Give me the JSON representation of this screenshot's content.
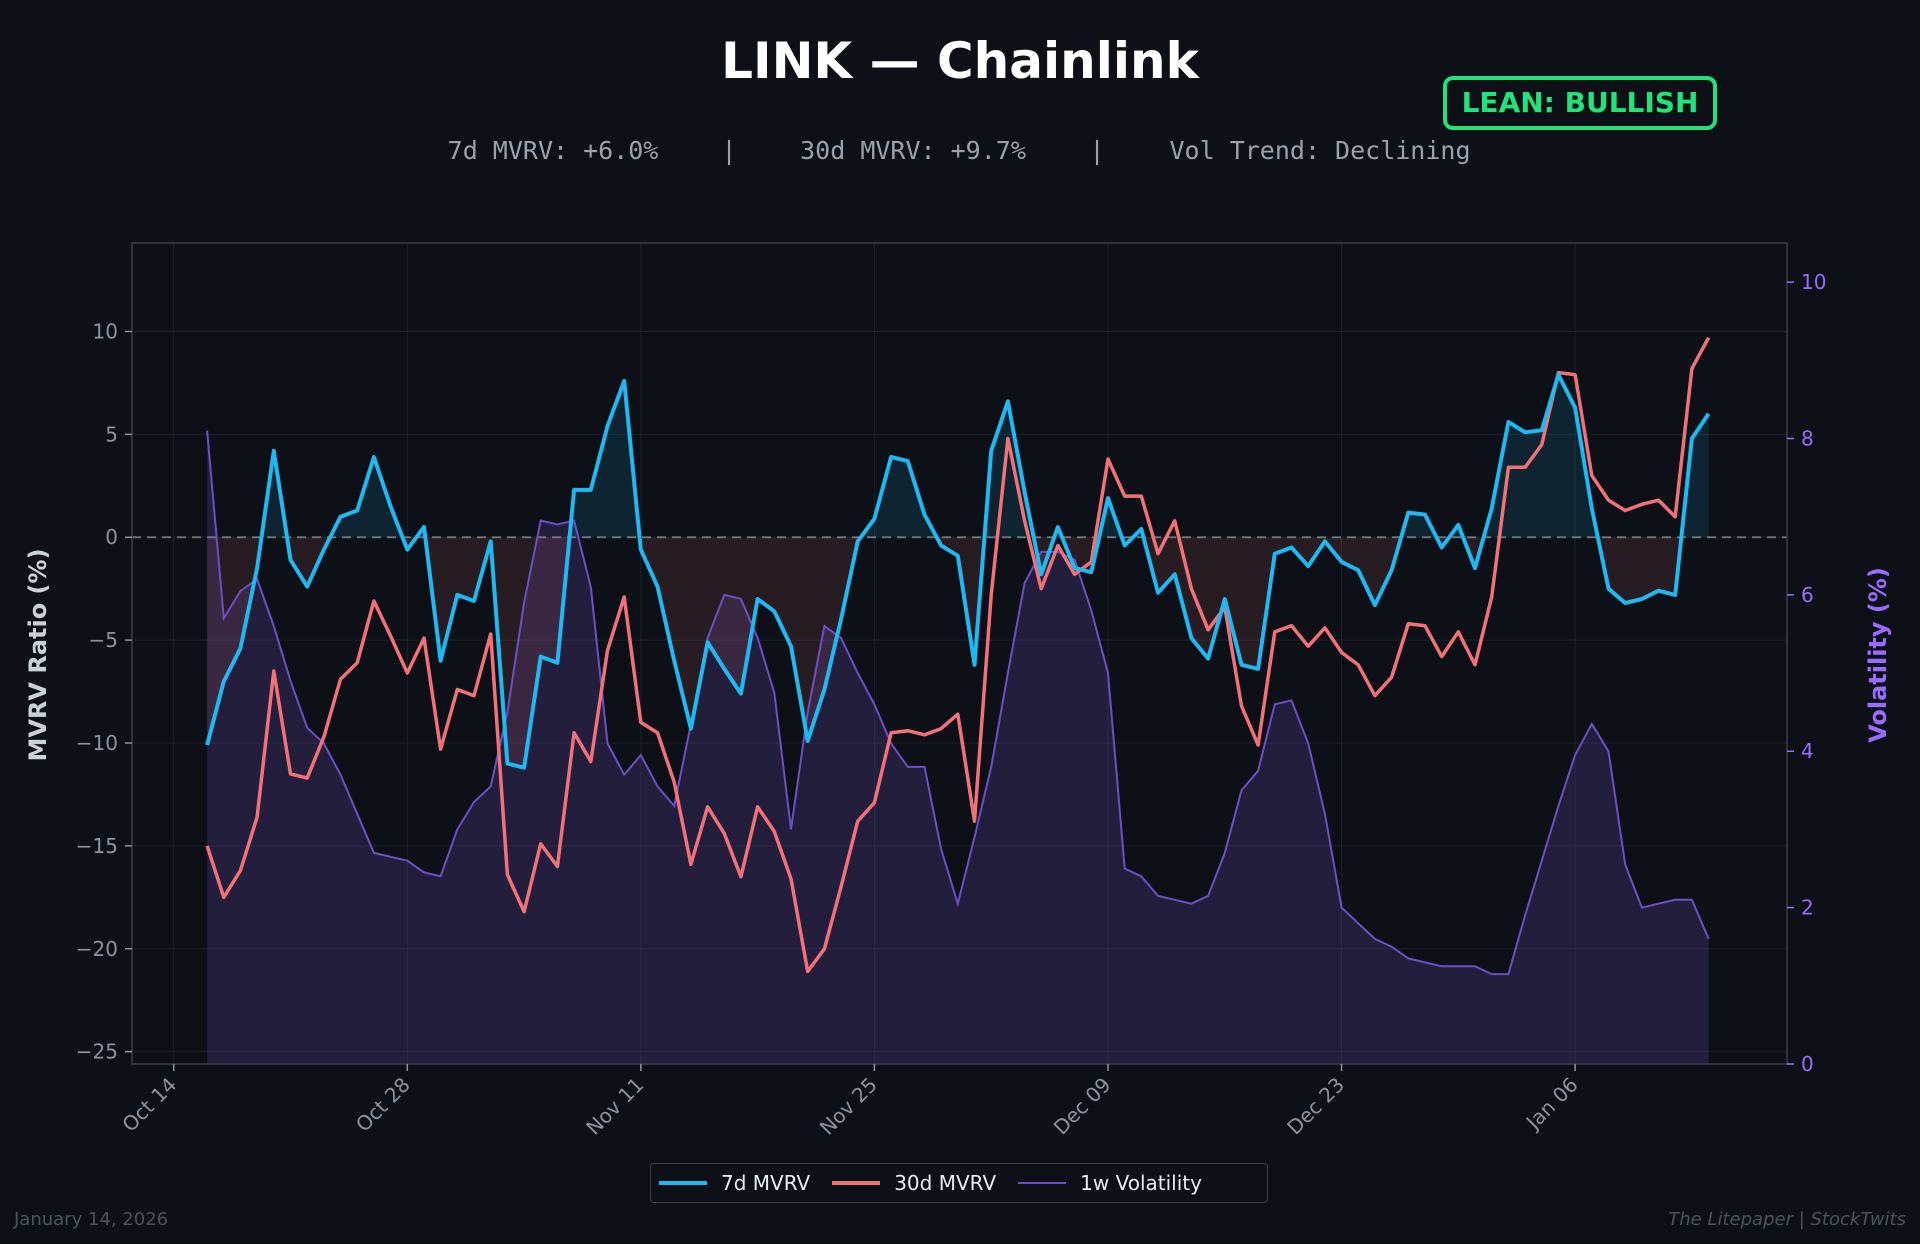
{
  "header": {
    "title": "LINK — Chainlink",
    "stats": [
      "7d MVRV: +6.0%",
      "30d MVRV: +9.7%",
      "Vol Trend: Declining"
    ],
    "separator": "|",
    "lean_badge": "LEAN: BULLISH"
  },
  "footer": {
    "date": "January 14, 2026",
    "source": "The Litepaper | StockTwits"
  },
  "colors": {
    "background": "#0d1117",
    "mvrv_7d": "#1fb8f0",
    "mvrv_30d": "#f07178",
    "volatility": "#6c4fc4",
    "volatility_axis": "#9b6bff",
    "bullish": "#22e37a"
  },
  "legend": [
    "7d MVRV",
    "30d MVRV",
    "1w Volatility"
  ],
  "chart_data": {
    "type": "line",
    "title": "LINK — Chainlink",
    "ylabel": "MVRV Ratio (%)",
    "y2label": "Volatility (%)",
    "ylim": [
      -25.6,
      14.3
    ],
    "y2lim": [
      0,
      10.5
    ],
    "yticks": [
      -25,
      -20,
      -15,
      -10,
      -5,
      0,
      5,
      10
    ],
    "y2ticks": [
      0,
      2,
      4,
      6,
      8,
      10
    ],
    "x_tick_labels": [
      "Oct 14",
      "Oct 28",
      "Nov 11",
      "Nov 25",
      "Dec 09",
      "Dec 23",
      "Jan 06"
    ],
    "x_tick_days": [
      0,
      14,
      28,
      42,
      56,
      70,
      84
    ],
    "xlim_days": [
      -2.5,
      96.7
    ],
    "x_start_day": 2,
    "baseline": 0,
    "grid": true,
    "legend_position": "bottom-center",
    "series": [
      {
        "name": "7d MVRV",
        "axis": "left",
        "values": [
          -10.1,
          -7.0,
          -5.4,
          -1.5,
          4.2,
          -1.1,
          -2.4,
          -0.6,
          1.0,
          1.3,
          3.9,
          1.5,
          -0.6,
          0.5,
          -6.0,
          -2.8,
          -3.1,
          -0.2,
          -11.0,
          -11.2,
          -5.8,
          -6.1,
          2.3,
          2.3,
          5.4,
          7.6,
          -0.6,
          -2.4,
          -6.0,
          -9.3,
          -5.1,
          -6.4,
          -7.6,
          -3.0,
          -3.6,
          -5.3,
          -9.9,
          -7.4,
          -4.0,
          -0.2,
          0.9,
          3.9,
          3.7,
          1.1,
          -0.4,
          -0.9,
          -6.2,
          4.2,
          6.6,
          2.2,
          -1.8,
          0.5,
          -1.5,
          -1.7,
          1.9,
          -0.4,
          0.4,
          -2.7,
          -1.8,
          -4.9,
          -5.9,
          -3.0,
          -6.2,
          -6.4,
          -0.8,
          -0.5,
          -1.4,
          -0.2,
          -1.2,
          -1.6,
          -3.3,
          -1.6,
          1.2,
          1.1,
          -0.5,
          0.6,
          -1.5,
          1.4,
          5.6,
          5.1,
          5.2,
          7.9,
          6.3,
          1.4,
          -2.5,
          -3.2,
          -3.0,
          -2.6,
          -2.8,
          4.8,
          6.0
        ]
      },
      {
        "name": "30d MVRV",
        "axis": "left",
        "values": [
          -15.0,
          -17.5,
          -16.2,
          -13.6,
          -6.5,
          -11.5,
          -11.7,
          -9.7,
          -6.9,
          -6.1,
          -3.1,
          -4.8,
          -6.6,
          -4.9,
          -10.3,
          -7.4,
          -7.7,
          -4.7,
          -16.4,
          -18.2,
          -14.9,
          -16.0,
          -9.5,
          -10.9,
          -5.5,
          -2.9,
          -9.0,
          -9.5,
          -11.9,
          -15.9,
          -13.1,
          -14.4,
          -16.5,
          -13.1,
          -14.3,
          -16.6,
          -21.1,
          -20.0,
          -17.0,
          -13.8,
          -12.9,
          -9.5,
          -9.4,
          -9.6,
          -9.3,
          -8.6,
          -13.8,
          -2.8,
          4.8,
          0.8,
          -2.5,
          -0.4,
          -1.8,
          -1.2,
          3.8,
          2.0,
          2.0,
          -0.8,
          0.8,
          -2.5,
          -4.5,
          -3.4,
          -8.2,
          -10.1,
          -4.6,
          -4.3,
          -5.3,
          -4.4,
          -5.6,
          -6.2,
          -7.7,
          -6.8,
          -4.2,
          -4.3,
          -5.8,
          -4.6,
          -6.2,
          -2.9,
          3.4,
          3.4,
          4.5,
          8.0,
          7.9,
          3.0,
          1.8,
          1.3,
          1.6,
          1.8,
          1.0,
          8.2,
          9.7
        ]
      },
      {
        "name": "1w Volatility",
        "axis": "right",
        "values": [
          8.1,
          5.7,
          6.05,
          6.2,
          5.6,
          4.9,
          4.3,
          4.1,
          3.7,
          3.2,
          2.7,
          2.65,
          2.6,
          2.45,
          2.4,
          3.0,
          3.35,
          3.55,
          4.5,
          5.9,
          6.95,
          6.9,
          6.95,
          6.1,
          4.1,
          3.7,
          3.95,
          3.55,
          3.3,
          4.35,
          5.45,
          6.0,
          5.95,
          5.45,
          4.75,
          3.0,
          4.5,
          5.6,
          5.45,
          5.0,
          4.6,
          4.1,
          3.8,
          3.8,
          2.75,
          2.05,
          2.9,
          3.8,
          5.0,
          6.15,
          6.55,
          6.55,
          6.45,
          5.8,
          5.0,
          2.5,
          2.4,
          2.15,
          2.1,
          2.05,
          2.15,
          2.7,
          3.5,
          3.75,
          4.6,
          4.65,
          4.1,
          3.2,
          2.0,
          1.8,
          1.6,
          1.5,
          1.35,
          1.3,
          1.25,
          1.25,
          1.25,
          1.15,
          1.15,
          1.9,
          2.6,
          3.3,
          3.95,
          4.35,
          4.0,
          2.55,
          2.0,
          2.05,
          2.1,
          2.1,
          1.6
        ]
      }
    ]
  }
}
